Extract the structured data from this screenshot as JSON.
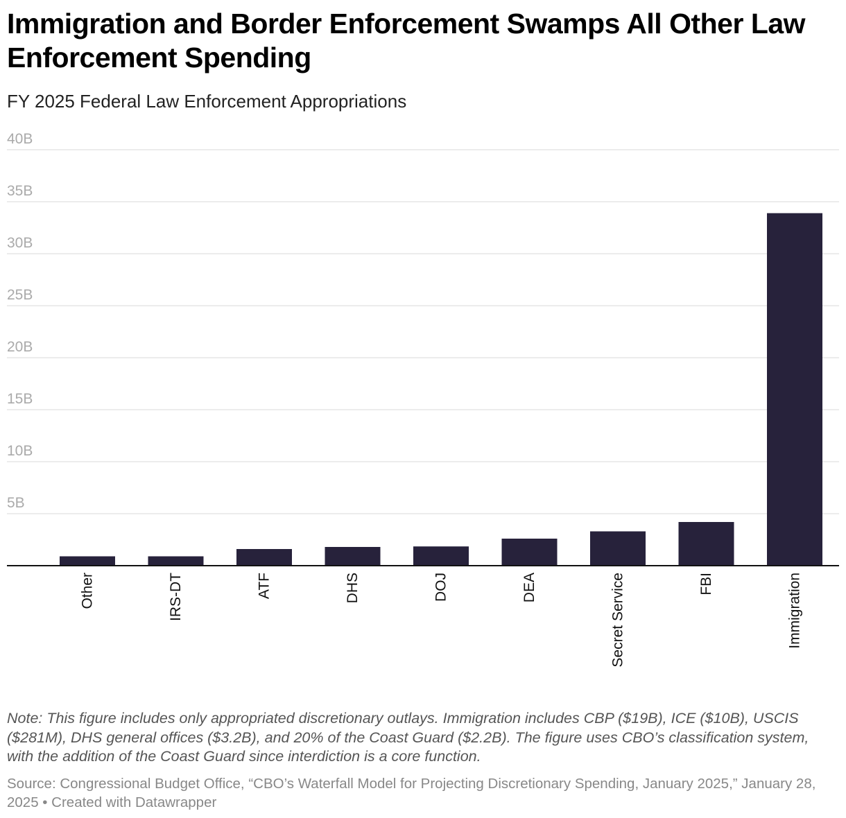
{
  "header": {
    "title": "Immigration and Border Enforcement Swamps All Other Law Enforcement Spending",
    "subtitle": "FY 2025 Federal Law Enforcement Appropriations"
  },
  "chart_data": {
    "type": "bar",
    "categories": [
      "Other",
      "IRS-DT",
      "ATF",
      "DHS",
      "DOJ",
      "DEA",
      "Secret Service",
      "FBI",
      "Immigration"
    ],
    "values": [
      0.9,
      0.9,
      1.6,
      1.8,
      1.85,
      2.6,
      3.3,
      4.2,
      33.9
    ],
    "unit": "B",
    "ylim": [
      0,
      40
    ],
    "yticks": [
      0,
      5,
      10,
      15,
      20,
      25,
      30,
      35,
      40
    ],
    "ytick_labels": [
      "",
      "5B",
      "10B",
      "15B",
      "20B",
      "25B",
      "30B",
      "35B",
      "40B"
    ],
    "grid": true,
    "bar_color": "#27223b",
    "grid_color": "#e0e0e0",
    "axis_color": "#111111",
    "tick_label_color": "#aaaaaa"
  },
  "footer": {
    "note": "Note: This figure includes only appropriated discretionary outlays. Immigration includes CBP ($19B), ICE ($10B), USCIS ($281M), DHS general offices ($3.2B), and 20% of the Coast Guard ($2.2B). The figure uses CBO’s classification system, with the addition of the Coast Guard since interdiction is a core function.",
    "source": "Source: Congressional Budget Office, “CBO’s Waterfall Model for Projecting Discretionary Spending, January 2025,” January 28, 2025 • Created with Datawrapper"
  }
}
